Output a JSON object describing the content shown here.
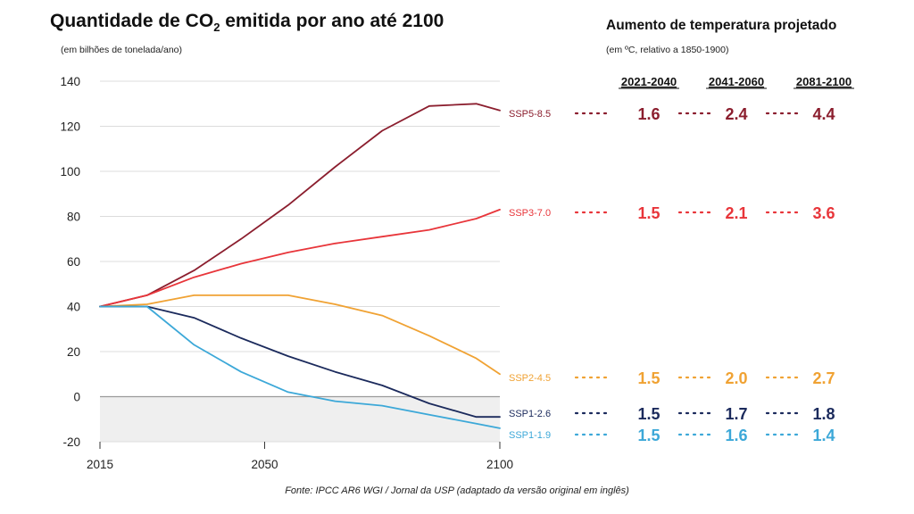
{
  "title": "Quantidade de CO",
  "title_sub": "2",
  "title_rest": " emitida por ano até 2100",
  "subtitle": "(em bilhões de tonelada/ano)",
  "right_title": "Aumento de temperatura projetado",
  "right_subtitle": "(em ºC, relativo a 1850-1900)",
  "source": "Fonte: IPCC AR6 WGI / Jornal da USP (adaptado da versão original em inglês)",
  "chart_data": {
    "type": "line",
    "title": "Quantidade de CO2 emitida por ano até 2100",
    "ylabel": "(em bilhões de tonelada/ano)",
    "xlabel": "",
    "xlim": [
      2015,
      2100
    ],
    "ylim": [
      -20,
      140
    ],
    "x_ticks": [
      2015,
      2050,
      2100
    ],
    "y_ticks": [
      -20,
      0,
      20,
      40,
      60,
      80,
      100,
      120,
      140
    ],
    "grid": true,
    "negative_region_shaded": true,
    "x": [
      2015,
      2025,
      2035,
      2045,
      2055,
      2065,
      2075,
      2085,
      2095,
      2100
    ],
    "series": [
      {
        "name": "SSP5-8.5",
        "color": "#8b1e2e",
        "values": [
          40,
          45,
          56,
          70,
          85,
          102,
          118,
          129,
          130,
          127
        ]
      },
      {
        "name": "SSP3-7.0",
        "color": "#e8353a",
        "values": [
          40,
          45,
          53,
          59,
          64,
          68,
          71,
          74,
          79,
          83
        ]
      },
      {
        "name": "SSP2-4.5",
        "color": "#f0a233",
        "values": [
          40,
          41,
          45,
          45,
          45,
          41,
          36,
          27,
          17,
          10
        ]
      },
      {
        "name": "SSP1-2.6",
        "color": "#1b2a5c",
        "values": [
          40,
          40,
          35,
          26,
          18,
          11,
          5,
          -3,
          -9,
          -9
        ]
      },
      {
        "name": "SSP1-1.9",
        "color": "#3ca8d8",
        "values": [
          40,
          40,
          23,
          11,
          2,
          -2,
          -4,
          -8,
          -12,
          -14
        ]
      }
    ]
  },
  "temperature_table": {
    "periods": [
      "2021-2040",
      "2041-2060",
      "2081-2100"
    ],
    "rows": [
      {
        "scenario": "SSP5-8.5",
        "color": "#8b1e2e",
        "values": [
          "1.6",
          "2.4",
          "4.4"
        ]
      },
      {
        "scenario": "SSP3-7.0",
        "color": "#e8353a",
        "values": [
          "1.5",
          "2.1",
          "3.6"
        ]
      },
      {
        "scenario": "SSP2-4.5",
        "color": "#f0a233",
        "values": [
          "1.5",
          "2.0",
          "2.7"
        ]
      },
      {
        "scenario": "SSP1-2.6",
        "color": "#1b2a5c",
        "values": [
          "1.5",
          "1.7",
          "1.8"
        ]
      },
      {
        "scenario": "SSP1-1.9",
        "color": "#3ca8d8",
        "values": [
          "1.5",
          "1.6",
          "1.4"
        ]
      }
    ]
  }
}
